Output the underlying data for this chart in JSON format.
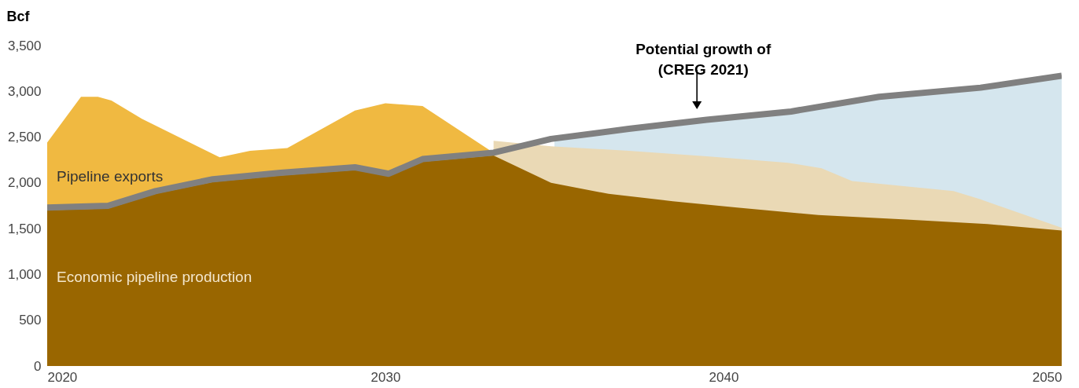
{
  "chart_data": {
    "type": "area",
    "ylabel": "Bcf",
    "xlim": [
      2020,
      2050
    ],
    "xticks": [
      2020,
      2030,
      2040,
      2050
    ],
    "ylim": [
      0,
      3500
    ],
    "yticks": [
      0,
      {
        "value": 500,
        "label": "500"
      },
      {
        "value": 1000,
        "label": "1,000"
      },
      {
        "value": 1500,
        "label": "1,500"
      },
      {
        "value": 2000,
        "label": "2,000"
      },
      {
        "value": 2500,
        "label": "2,500"
      },
      {
        "value": 3000,
        "label": "3,000"
      },
      {
        "value": 3500,
        "label": "3,500"
      }
    ],
    "grid": false,
    "legend": false,
    "series": [
      {
        "color": "#d5e6ee",
        "x": [
          2035,
          2037.2,
          2039.5,
          2042,
          2044.6,
          2047.6,
          2050
        ],
        "values": [
          2490,
          2590,
          2690,
          2780,
          2940,
          3040,
          3170
        ]
      },
      {
        "color": "#ead9b5",
        "x": [
          2033.2,
          2034.9,
          2037.2,
          2039.5,
          2041.9,
          2042.9,
          2043.8,
          2046.8,
          2047.6,
          2050
        ],
        "values": [
          2460,
          2400,
          2350,
          2290,
          2220,
          2160,
          2020,
          1910,
          1820,
          1510
        ]
      },
      {
        "name": "Pipeline exports",
        "color": "#f0b941",
        "x": [
          2020,
          2021,
          2021.5,
          2021.9,
          2022.8,
          2025.1,
          2026,
          2027.1,
          2029.1,
          2030,
          2031.1,
          2033.2
        ],
        "values": [
          2440,
          2940,
          2940,
          2900,
          2700,
          2280,
          2350,
          2380,
          2790,
          2870,
          2840,
          2330
        ]
      },
      {
        "name": "Economic pipeline production",
        "color": "#996600",
        "x": [
          2020,
          2021.8,
          2023.2,
          2024.9,
          2026.9,
          2029.1,
          2030.1,
          2031.1,
          2033.2,
          2034.9,
          2036.6,
          2038.5,
          2040.4,
          2042.8,
          2045.4,
          2047.8,
          2050
        ],
        "values": [
          1700,
          1720,
          1880,
          2010,
          2080,
          2140,
          2080,
          2230,
          2300,
          2000,
          1880,
          1800,
          1730,
          1650,
          1600,
          1550,
          1480
        ]
      },
      {
        "type": "line",
        "color": "#808080",
        "x": [
          2020,
          2021.8,
          2023.2,
          2024.9,
          2026.9,
          2029.1,
          2030.1,
          2031.1,
          2033.2,
          2034.9,
          2037.2,
          2039.5,
          2042,
          2044.6,
          2047.6,
          2050
        ],
        "values": [
          1730,
          1750,
          1910,
          2040,
          2110,
          2170,
          2100,
          2260,
          2330,
          2480,
          2590,
          2690,
          2780,
          2940,
          3040,
          3170
        ]
      }
    ],
    "annotations": [
      {
        "text": "Potential growth of\n(CREG 2021)",
        "x": 2039.4,
        "y": 2685
      }
    ]
  }
}
